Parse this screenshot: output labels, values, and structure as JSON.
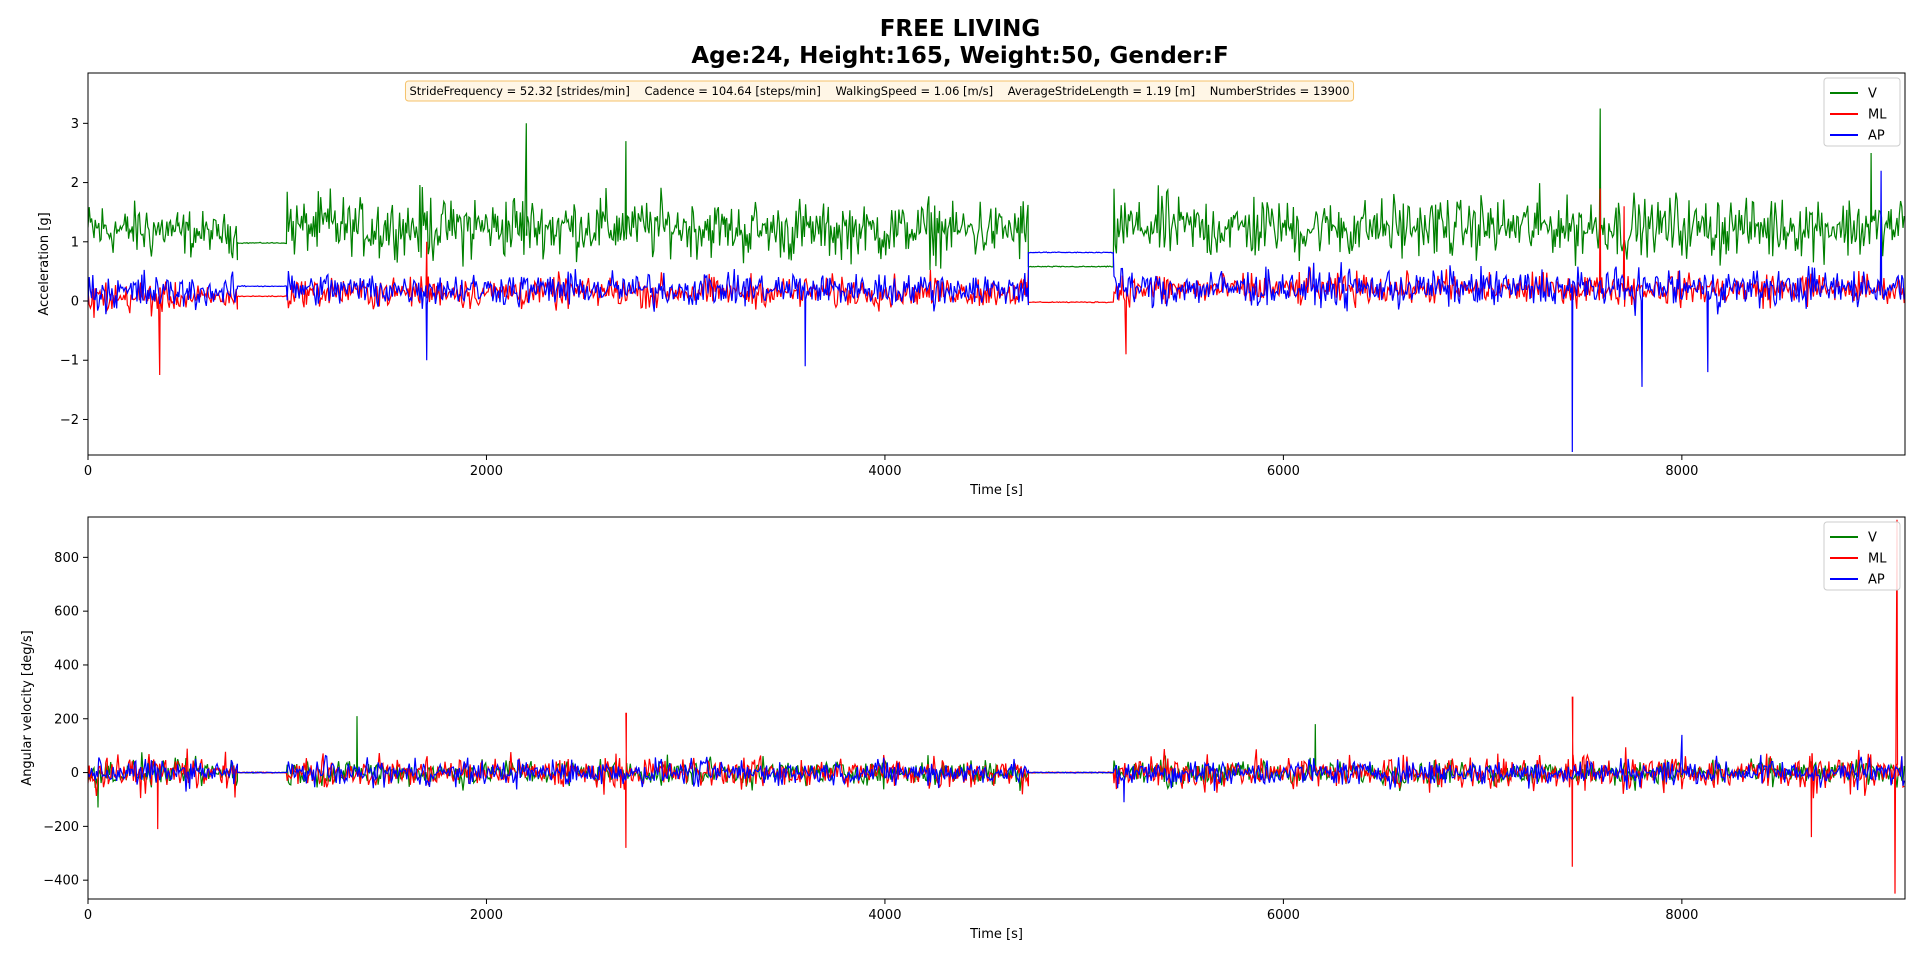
{
  "title": "FREE LIVING",
  "subtitle": "Age:24, Height:165, Weight:50, Gender:F",
  "annotation": "StrideFrequency = 52.32 [strides/min]    Cadence = 104.64 [steps/min]    WalkingSpeed = 1.06 [m/s]    AverageStrideLength = 1.19 [m]    NumberStrides = 13900",
  "colors": {
    "V": "#008000",
    "ML": "#ff0000",
    "AP": "#0000ff",
    "annotation_bg": "#fff6e6",
    "annotation_border": "#f5c26b"
  },
  "chart_data": [
    {
      "type": "line",
      "xlabel": "Time [s]",
      "ylabel": "Acceleration [g]",
      "xlim": [
        0,
        9120
      ],
      "ylim": [
        -2.6,
        3.85
      ],
      "xticks": [
        0,
        2000,
        4000,
        6000,
        8000
      ],
      "yticks": [
        -2,
        -1,
        0,
        1,
        2,
        3
      ],
      "ytick_labels": [
        "−2",
        "−1",
        "0",
        "1",
        "2",
        "3"
      ],
      "grid": false,
      "legend_position": "top-right",
      "series": [
        {
          "name": "V",
          "color": "#008000",
          "segments": [
            {
              "x0": 0,
              "x1": 450,
              "mode": "active",
              "center": 1.2,
              "amp": 0.8
            },
            {
              "x0": 450,
              "x1": 750,
              "mode": "active",
              "center": 1.15,
              "amp": 0.6
            },
            {
              "x0": 750,
              "x1": 1000,
              "mode": "rest",
              "level": 0.98
            },
            {
              "x0": 1000,
              "x1": 2600,
              "mode": "active",
              "center": 1.25,
              "amp": 0.95
            },
            {
              "x0": 2600,
              "x1": 3200,
              "mode": "active",
              "center": 1.25,
              "amp": 0.85
            },
            {
              "x0": 3200,
              "x1": 4720,
              "mode": "active",
              "center": 1.2,
              "amp": 0.85
            },
            {
              "x0": 4720,
              "x1": 5150,
              "mode": "rest",
              "level": 0.58
            },
            {
              "x0": 5150,
              "x1": 9120,
              "mode": "active",
              "center": 1.25,
              "amp": 0.9
            }
          ],
          "spikes": [
            {
              "x": 2200,
              "y": 3.0
            },
            {
              "x": 7590,
              "y": 3.25
            },
            {
              "x": 2700,
              "y": 2.7
            },
            {
              "x": 8950,
              "y": 2.5
            }
          ]
        },
        {
          "name": "ML",
          "color": "#ff0000",
          "segments": [
            {
              "x0": 0,
              "x1": 450,
              "mode": "active",
              "center": 0.05,
              "amp": 0.5
            },
            {
              "x0": 450,
              "x1": 750,
              "mode": "active",
              "center": 0.05,
              "amp": 0.35
            },
            {
              "x0": 750,
              "x1": 1000,
              "mode": "rest",
              "level": 0.08
            },
            {
              "x0": 1000,
              "x1": 4720,
              "mode": "active",
              "center": 0.15,
              "amp": 0.45
            },
            {
              "x0": 4720,
              "x1": 5150,
              "mode": "rest",
              "level": -0.02
            },
            {
              "x0": 5150,
              "x1": 9120,
              "mode": "active",
              "center": 0.2,
              "amp": 0.45
            }
          ],
          "spikes": [
            {
              "x": 360,
              "y": -1.25
            },
            {
              "x": 5210,
              "y": -0.9
            },
            {
              "x": 7590,
              "y": 1.9
            },
            {
              "x": 7710,
              "y": 1.6
            },
            {
              "x": 1700,
              "y": 1.0
            }
          ]
        },
        {
          "name": "AP",
          "color": "#0000ff",
          "segments": [
            {
              "x0": 0,
              "x1": 450,
              "mode": "active",
              "center": 0.15,
              "amp": 0.55
            },
            {
              "x0": 450,
              "x1": 750,
              "mode": "active",
              "center": 0.15,
              "amp": 0.45
            },
            {
              "x0": 750,
              "x1": 1000,
              "mode": "rest",
              "level": 0.25
            },
            {
              "x0": 1000,
              "x1": 4720,
              "mode": "active",
              "center": 0.2,
              "amp": 0.5
            },
            {
              "x0": 4720,
              "x1": 5150,
              "mode": "rest",
              "level": 0.82
            },
            {
              "x0": 5150,
              "x1": 9120,
              "mode": "active",
              "center": 0.22,
              "amp": 0.55
            }
          ],
          "spikes": [
            {
              "x": 7450,
              "y": -2.55
            },
            {
              "x": 7800,
              "y": -1.45
            },
            {
              "x": 8130,
              "y": -1.2
            },
            {
              "x": 3600,
              "y": -1.1
            },
            {
              "x": 1700,
              "y": -1.0
            },
            {
              "x": 9000,
              "y": 2.2
            }
          ]
        }
      ]
    },
    {
      "type": "line",
      "xlabel": "Time [s]",
      "ylabel": "Angular velocity [deg/s]",
      "xlim": [
        0,
        9120
      ],
      "ylim": [
        -470,
        950
      ],
      "xticks": [
        0,
        2000,
        4000,
        6000,
        8000
      ],
      "yticks": [
        -400,
        -200,
        0,
        200,
        400,
        600,
        800
      ],
      "ytick_labels": [
        "−400",
        "−200",
        "0",
        "200",
        "400",
        "600",
        "800"
      ],
      "grid": false,
      "legend_position": "top-right",
      "series": [
        {
          "name": "V",
          "color": "#008000",
          "segments": [
            {
              "x0": 0,
              "x1": 750,
              "mode": "active",
              "center": 0,
              "amp": 90
            },
            {
              "x0": 750,
              "x1": 1000,
              "mode": "rest",
              "level": 0
            },
            {
              "x0": 1000,
              "x1": 4720,
              "mode": "active",
              "center": 0,
              "amp": 85
            },
            {
              "x0": 4720,
              "x1": 5150,
              "mode": "rest",
              "level": 0
            },
            {
              "x0": 5150,
              "x1": 9120,
              "mode": "active",
              "center": 0,
              "amp": 80
            }
          ],
          "spikes": [
            {
              "x": 1350,
              "y": 210
            },
            {
              "x": 6160,
              "y": 180
            },
            {
              "x": 50,
              "y": -130
            }
          ]
        },
        {
          "name": "ML",
          "color": "#ff0000",
          "segments": [
            {
              "x0": 0,
              "x1": 750,
              "mode": "active",
              "center": 0,
              "amp": 120
            },
            {
              "x0": 750,
              "x1": 1000,
              "mode": "rest",
              "level": 0
            },
            {
              "x0": 1000,
              "x1": 4720,
              "mode": "active",
              "center": 0,
              "amp": 100
            },
            {
              "x0": 4720,
              "x1": 5150,
              "mode": "rest",
              "level": 0
            },
            {
              "x0": 5150,
              "x1": 9120,
              "mode": "active",
              "center": 0,
              "amp": 110
            }
          ],
          "spikes": [
            {
              "x": 2700,
              "y": 220
            },
            {
              "x": 2700,
              "y": -280
            },
            {
              "x": 7450,
              "y": 280
            },
            {
              "x": 7450,
              "y": -350
            },
            {
              "x": 9080,
              "y": 940
            },
            {
              "x": 9070,
              "y": -450
            },
            {
              "x": 350,
              "y": -210
            },
            {
              "x": 8650,
              "y": -240
            }
          ]
        },
        {
          "name": "AP",
          "color": "#0000ff",
          "segments": [
            {
              "x0": 0,
              "x1": 750,
              "mode": "active",
              "center": 0,
              "amp": 80
            },
            {
              "x0": 750,
              "x1": 1000,
              "mode": "rest",
              "level": 0
            },
            {
              "x0": 1000,
              "x1": 4720,
              "mode": "active",
              "center": 0,
              "amp": 80
            },
            {
              "x0": 4720,
              "x1": 5150,
              "mode": "rest",
              "level": 0
            },
            {
              "x0": 5150,
              "x1": 9120,
              "mode": "active",
              "center": 0,
              "amp": 85
            }
          ],
          "spikes": [
            {
              "x": 8000,
              "y": 140
            },
            {
              "x": 5200,
              "y": -110
            }
          ]
        }
      ]
    }
  ]
}
